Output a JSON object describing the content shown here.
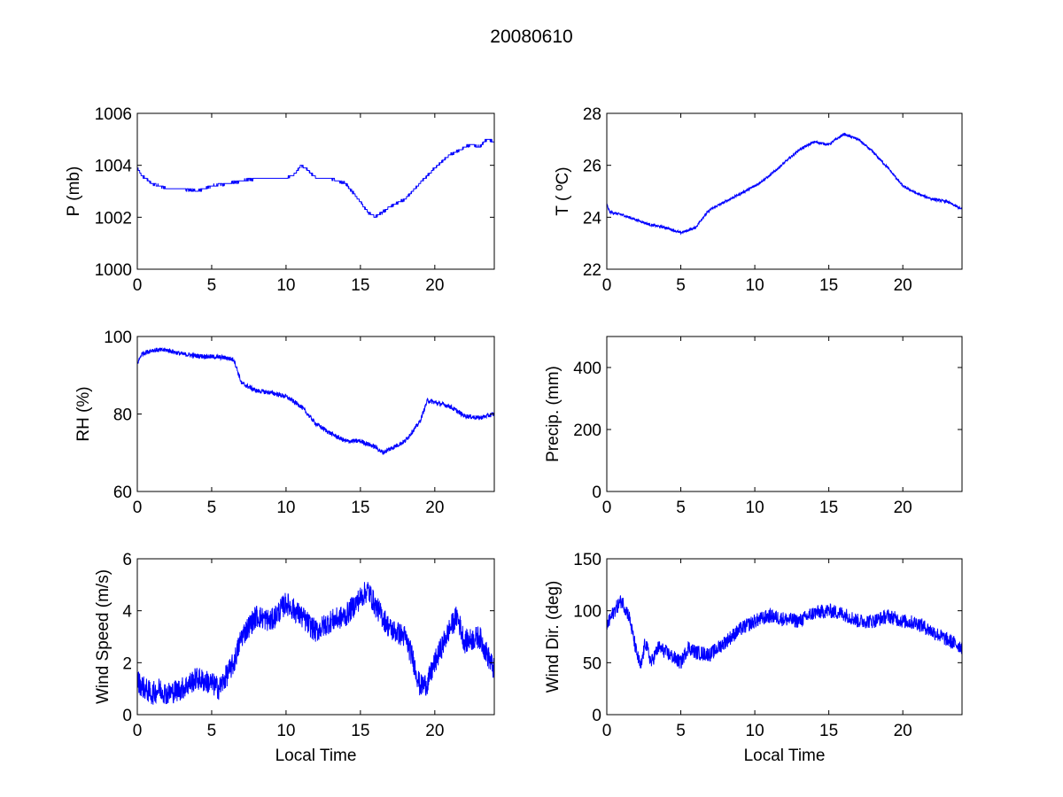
{
  "figure": {
    "title": "20080610",
    "line_color": "#0000ff"
  },
  "chart_data": [
    {
      "type": "line",
      "ylabel": "P (mb)",
      "xlabel": "",
      "xlim": [
        0,
        24
      ],
      "ylim": [
        1000,
        1006
      ],
      "xticks": [
        0,
        5,
        10,
        15,
        20
      ],
      "yticks": [
        1000,
        1002,
        1004,
        1006
      ],
      "series": [
        {
          "noise": 0.04,
          "step": 0.1,
          "x": [
            0,
            0.3,
            1,
            2,
            3,
            4,
            5,
            6,
            7,
            8,
            9,
            10,
            10.5,
            11,
            11.5,
            12,
            13,
            14,
            15,
            15.5,
            16,
            16.5,
            17,
            18,
            19,
            20,
            21,
            22,
            22.5,
            23,
            23.5,
            24
          ],
          "y": [
            1003.9,
            1003.6,
            1003.3,
            1003.1,
            1003.1,
            1003.0,
            1003.2,
            1003.3,
            1003.4,
            1003.5,
            1003.5,
            1003.5,
            1003.6,
            1004.0,
            1003.8,
            1003.5,
            1003.5,
            1003.3,
            1002.6,
            1002.2,
            1002.0,
            1002.2,
            1002.4,
            1002.7,
            1003.3,
            1003.9,
            1004.4,
            1004.7,
            1004.8,
            1004.7,
            1005.0,
            1004.9
          ]
        }
      ]
    },
    {
      "type": "line",
      "ylabel": "T ( ºC)",
      "xlabel": "",
      "xlim": [
        0,
        24
      ],
      "ylim": [
        22,
        28
      ],
      "xticks": [
        0,
        5,
        10,
        15,
        20
      ],
      "yticks": [
        22,
        24,
        26,
        28
      ],
      "series": [
        {
          "noise": 0.05,
          "x": [
            0,
            0.2,
            1,
            2,
            3,
            4,
            5,
            6,
            6.5,
            7,
            8,
            9,
            10,
            11,
            12,
            13,
            14,
            15,
            16,
            17,
            18,
            19,
            20,
            21,
            22,
            23,
            24
          ],
          "y": [
            24.5,
            24.2,
            24.1,
            23.9,
            23.7,
            23.6,
            23.4,
            23.6,
            24.0,
            24.3,
            24.6,
            24.9,
            25.2,
            25.6,
            26.1,
            26.6,
            26.9,
            26.8,
            27.2,
            27.0,
            26.5,
            25.9,
            25.2,
            24.9,
            24.7,
            24.6,
            24.3
          ]
        }
      ]
    },
    {
      "type": "line",
      "ylabel": "RH (%)",
      "xlabel": "",
      "xlim": [
        0,
        24
      ],
      "ylim": [
        60,
        100
      ],
      "xticks": [
        0,
        5,
        10,
        15,
        20
      ],
      "yticks": [
        60,
        80,
        100
      ],
      "series": [
        {
          "noise": 0.6,
          "x": [
            0,
            0.3,
            1,
            2,
            3,
            4,
            5,
            6,
            6.5,
            7,
            8,
            9,
            10,
            11,
            12,
            13,
            14,
            15,
            16,
            16.5,
            17,
            18,
            19,
            19.5,
            20,
            21,
            22,
            23,
            24
          ],
          "y": [
            93,
            95.5,
            96.5,
            96.5,
            95.5,
            95,
            94.8,
            94.5,
            94,
            88,
            86,
            85.5,
            84.5,
            82,
            77.5,
            75,
            73,
            73,
            71.5,
            70,
            71,
            73,
            78,
            83.5,
            83,
            82,
            79.5,
            79,
            80
          ]
        }
      ]
    },
    {
      "type": "line",
      "ylabel": "Precip. (mm)",
      "xlabel": "",
      "xlim": [
        0,
        24
      ],
      "ylim": [
        0,
        500
      ],
      "xticks": [
        0,
        5,
        10,
        15,
        20
      ],
      "yticks": [
        0,
        200,
        400
      ],
      "series": [
        {
          "noise": 0,
          "x": [],
          "y": []
        }
      ]
    },
    {
      "type": "line",
      "ylabel": "Wind Speed (m/s)",
      "xlabel": "Local Time",
      "xlim": [
        0,
        24
      ],
      "ylim": [
        0,
        6
      ],
      "xticks": [
        0,
        5,
        10,
        15,
        20
      ],
      "yticks": [
        0,
        2,
        4,
        6
      ],
      "series": [
        {
          "noise": 0.45,
          "x": [
            0,
            0.5,
            1,
            1.5,
            2,
            3,
            4,
            5,
            5.5,
            6,
            6.5,
            7,
            8,
            9,
            10,
            11,
            12,
            13,
            14,
            15,
            15.5,
            16,
            17,
            18,
            18.5,
            19,
            19.5,
            20,
            21,
            21.5,
            22,
            23,
            24
          ],
          "y": [
            1.3,
            1.0,
            0.8,
            1.0,
            0.8,
            1.0,
            1.4,
            1.2,
            1.0,
            1.5,
            2.0,
            3.0,
            3.8,
            3.6,
            4.3,
            3.8,
            3.2,
            3.6,
            3.8,
            4.5,
            4.8,
            4.2,
            3.3,
            3.0,
            2.2,
            1.1,
            1.2,
            2.0,
            3.3,
            3.8,
            2.8,
            3.0,
            1.7
          ]
        }
      ]
    },
    {
      "type": "line",
      "ylabel": "Wind Dir. (deg)",
      "xlabel": "Local Time",
      "xlim": [
        0,
        24
      ],
      "ylim": [
        0,
        150
      ],
      "xticks": [
        0,
        5,
        10,
        15,
        20
      ],
      "yticks": [
        0,
        50,
        100,
        150
      ],
      "series": [
        {
          "noise": 7,
          "x": [
            0,
            0.5,
            1,
            1.5,
            2,
            2.3,
            2.6,
            3,
            3.5,
            4,
            4.5,
            5,
            5.5,
            6,
            7,
            8,
            9,
            10,
            11,
            12,
            13,
            14,
            15,
            16,
            17,
            18,
            19,
            20,
            21,
            22,
            23,
            24
          ],
          "y": [
            85,
            100,
            110,
            95,
            60,
            45,
            70,
            50,
            65,
            60,
            55,
            50,
            65,
            60,
            58,
            70,
            82,
            90,
            95,
            92,
            90,
            98,
            100,
            97,
            90,
            90,
            95,
            90,
            88,
            80,
            72,
            65
          ]
        }
      ]
    }
  ]
}
